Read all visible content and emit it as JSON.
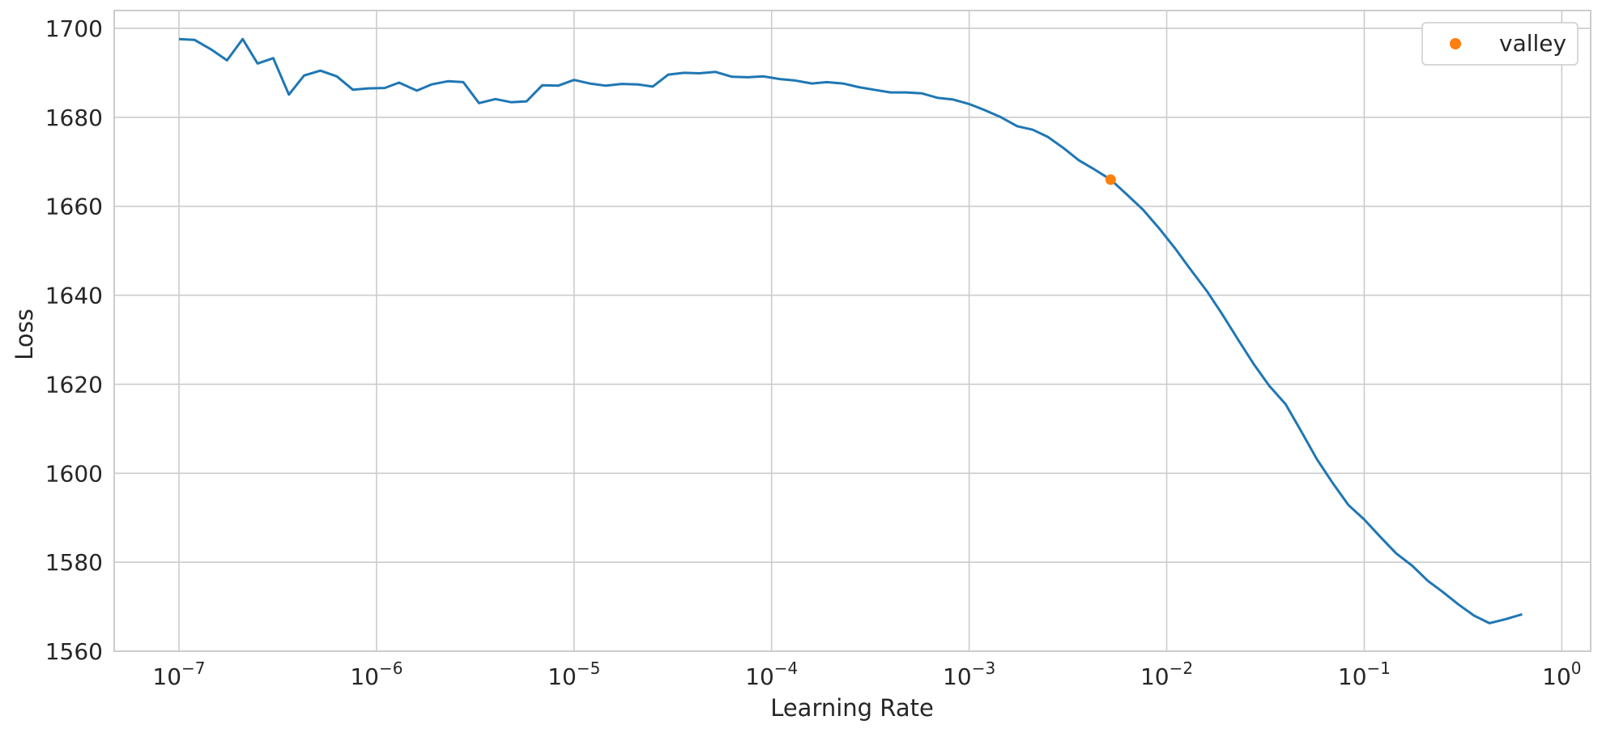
{
  "chart_data": {
    "type": "line",
    "xlabel": "Learning Rate",
    "ylabel": "Loss",
    "xscale": "log",
    "xlim": [
      4.7e-08,
      1.4
    ],
    "ylim": [
      1560,
      1704
    ],
    "grid": true,
    "legend_position": "top-right",
    "x_ticks": [
      {
        "value": 1e-07,
        "base": "10",
        "exp": "−7"
      },
      {
        "value": 1e-06,
        "base": "10",
        "exp": "−6"
      },
      {
        "value": 1e-05,
        "base": "10",
        "exp": "−5"
      },
      {
        "value": 0.0001,
        "base": "10",
        "exp": "−4"
      },
      {
        "value": 0.001,
        "base": "10",
        "exp": "−3"
      },
      {
        "value": 0.01,
        "base": "10",
        "exp": "−2"
      },
      {
        "value": 0.1,
        "base": "10",
        "exp": "−1"
      },
      {
        "value": 1,
        "base": "10",
        "exp": "0"
      }
    ],
    "y_ticks": [
      {
        "value": 1560,
        "label": "1560"
      },
      {
        "value": 1580,
        "label": "1580"
      },
      {
        "value": 1600,
        "label": "1600"
      },
      {
        "value": 1620,
        "label": "1620"
      },
      {
        "value": 1640,
        "label": "1640"
      },
      {
        "value": 1660,
        "label": "1660"
      },
      {
        "value": 1680,
        "label": "1680"
      },
      {
        "value": 1700,
        "label": "1700"
      }
    ],
    "series": [
      {
        "color": "#1f77b4",
        "x": [
          1e-07,
          1.2e-07,
          1.45e-07,
          1.75e-07,
          2.1e-07,
          2.5e-07,
          3e-07,
          3.6e-07,
          4.3e-07,
          5.2e-07,
          6.3e-07,
          7.6e-07,
          9.1e-07,
          1.1e-06,
          1.3e-06,
          1.6e-06,
          1.9e-06,
          2.3e-06,
          2.75e-06,
          3.3e-06,
          4e-06,
          4.8e-06,
          5.75e-06,
          6.9e-06,
          8.3e-06,
          1e-05,
          1.2e-05,
          1.45e-05,
          1.75e-05,
          2.1e-05,
          2.5e-05,
          3e-05,
          3.6e-05,
          4.3e-05,
          5.2e-05,
          6.3e-05,
          7.6e-05,
          9.1e-05,
          0.00011,
          0.00013,
          0.00016,
          0.00019,
          0.00023,
          0.000275,
          0.00033,
          0.0004,
          0.00048,
          0.000575,
          0.00069,
          0.00083,
          0.001,
          0.0012,
          0.00145,
          0.00175,
          0.0021,
          0.0025,
          0.003,
          0.0036,
          0.0043,
          0.0052,
          0.0063,
          0.0076,
          0.0091,
          0.011,
          0.013,
          0.016,
          0.019,
          0.023,
          0.0275,
          0.033,
          0.04,
          0.048,
          0.0575,
          0.069,
          0.083,
          0.1,
          0.12,
          0.145,
          0.175,
          0.21,
          0.25,
          0.3,
          0.36,
          0.43,
          0.52,
          0.63
        ],
        "y": [
          1697.6,
          1697.4,
          1695.3,
          1692.8,
          1697.6,
          1692.1,
          1693.3,
          1685.1,
          1689.4,
          1690.5,
          1689.2,
          1686.2,
          1686.5,
          1686.6,
          1687.8,
          1686.0,
          1687.4,
          1688.1,
          1687.9,
          1683.2,
          1684.1,
          1683.4,
          1683.6,
          1687.2,
          1687.1,
          1688.4,
          1687.6,
          1687.1,
          1687.5,
          1687.4,
          1686.9,
          1689.6,
          1690.0,
          1689.9,
          1690.2,
          1689.1,
          1689.0,
          1689.2,
          1688.6,
          1688.3,
          1687.6,
          1687.9,
          1687.6,
          1686.8,
          1686.2,
          1685.6,
          1685.6,
          1685.4,
          1684.4,
          1684.0,
          1683.0,
          1681.6,
          1680.0,
          1678.0,
          1677.2,
          1675.6,
          1673.1,
          1670.3,
          1668.3,
          1666.0,
          1662.6,
          1659.2,
          1655.2,
          1650.6,
          1646.2,
          1640.9,
          1635.9,
          1630.0,
          1624.6,
          1619.7,
          1615.5,
          1609.4,
          1603.2,
          1597.9,
          1592.9,
          1589.6,
          1585.8,
          1582.0,
          1579.2,
          1575.8,
          1573.3,
          1570.5,
          1568.0,
          1566.3,
          1567.2,
          1568.3
        ]
      }
    ],
    "markers": [
      {
        "name": "valley",
        "color": "#ff7f0e",
        "x": 0.0052,
        "y": 1666.0
      }
    ]
  }
}
